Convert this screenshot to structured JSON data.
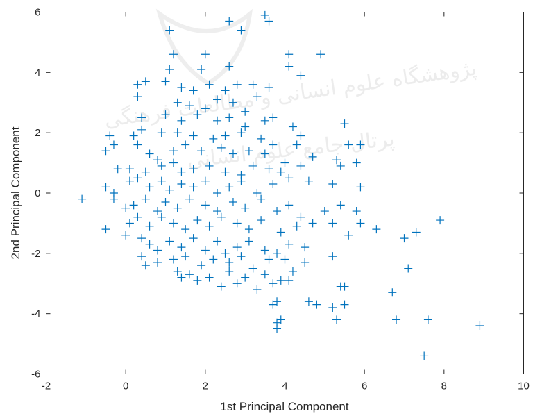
{
  "chart_data": {
    "type": "scatter",
    "marker": "+",
    "xlabel": "1st Principal Component",
    "ylabel": "2nd Principal Component",
    "xlim": [
      -2,
      10
    ],
    "ylim": [
      -6,
      6
    ],
    "xticks": [
      -2,
      0,
      2,
      4,
      6,
      8,
      10
    ],
    "yticks": [
      -6,
      -4,
      -2,
      0,
      2,
      4,
      6
    ],
    "grid": false,
    "color": "#0072BD",
    "series": [
      {
        "points": [
          [
            1.1,
            5.4
          ],
          [
            2.6,
            5.7
          ],
          [
            2.9,
            5.4
          ],
          [
            3.5,
            5.9
          ],
          [
            3.6,
            5.7
          ],
          [
            1.2,
            4.6
          ],
          [
            2.0,
            4.6
          ],
          [
            4.1,
            4.6
          ],
          [
            4.9,
            4.6
          ],
          [
            1.1,
            4.1
          ],
          [
            1.9,
            4.1
          ],
          [
            2.6,
            4.2
          ],
          [
            4.1,
            4.2
          ],
          [
            4.4,
            3.9
          ],
          [
            0.3,
            3.6
          ],
          [
            0.5,
            3.7
          ],
          [
            1.0,
            3.7
          ],
          [
            1.4,
            3.5
          ],
          [
            1.7,
            3.4
          ],
          [
            2.1,
            3.6
          ],
          [
            2.5,
            3.4
          ],
          [
            2.8,
            3.6
          ],
          [
            3.2,
            3.6
          ],
          [
            3.6,
            3.5
          ],
          [
            0.3,
            3.2
          ],
          [
            1.3,
            3.0
          ],
          [
            1.6,
            2.9
          ],
          [
            2.0,
            2.8
          ],
          [
            2.3,
            3.1
          ],
          [
            2.7,
            3.0
          ],
          [
            3.0,
            2.7
          ],
          [
            3.3,
            3.2
          ],
          [
            0.4,
            2.5
          ],
          [
            1.0,
            2.6
          ],
          [
            1.4,
            2.4
          ],
          [
            1.8,
            2.6
          ],
          [
            2.3,
            2.4
          ],
          [
            2.6,
            2.5
          ],
          [
            3.0,
            2.2
          ],
          [
            3.5,
            2.4
          ],
          [
            3.7,
            2.5
          ],
          [
            -0.4,
            1.9
          ],
          [
            0.2,
            1.9
          ],
          [
            0.4,
            2.1
          ],
          [
            0.9,
            2.0
          ],
          [
            1.3,
            2.0
          ],
          [
            1.7,
            1.9
          ],
          [
            2.2,
            1.8
          ],
          [
            2.5,
            1.9
          ],
          [
            2.9,
            2.0
          ],
          [
            3.4,
            1.8
          ],
          [
            4.2,
            2.2
          ],
          [
            4.4,
            1.9
          ],
          [
            5.5,
            2.3
          ],
          [
            -0.5,
            1.4
          ],
          [
            -0.3,
            1.6
          ],
          [
            0.3,
            1.6
          ],
          [
            0.6,
            1.3
          ],
          [
            0.8,
            1.1
          ],
          [
            1.2,
            1.4
          ],
          [
            1.5,
            1.6
          ],
          [
            1.9,
            1.4
          ],
          [
            2.4,
            1.5
          ],
          [
            2.7,
            1.3
          ],
          [
            3.1,
            1.4
          ],
          [
            3.5,
            1.3
          ],
          [
            3.7,
            1.6
          ],
          [
            4.0,
            1.0
          ],
          [
            4.3,
            1.6
          ],
          [
            4.7,
            1.2
          ],
          [
            5.3,
            1.1
          ],
          [
            5.6,
            1.6
          ],
          [
            5.9,
            1.6
          ],
          [
            -0.2,
            0.8
          ],
          [
            0.1,
            0.8
          ],
          [
            0.5,
            0.7
          ],
          [
            0.9,
            0.9
          ],
          [
            1.2,
            1.0
          ],
          [
            1.4,
            0.7
          ],
          [
            1.7,
            0.8
          ],
          [
            2.1,
            0.9
          ],
          [
            2.5,
            0.7
          ],
          [
            2.9,
            0.6
          ],
          [
            3.2,
            0.9
          ],
          [
            3.6,
            0.8
          ],
          [
            3.9,
            0.7
          ],
          [
            4.4,
            0.9
          ],
          [
            5.4,
            0.9
          ],
          [
            5.8,
            1.0
          ],
          [
            -1.1,
            -0.2
          ],
          [
            -0.5,
            0.2
          ],
          [
            -0.3,
            0.0
          ],
          [
            0.1,
            0.4
          ],
          [
            0.3,
            0.5
          ],
          [
            0.6,
            0.2
          ],
          [
            0.9,
            0.4
          ],
          [
            1.1,
            0.1
          ],
          [
            1.4,
            0.3
          ],
          [
            1.7,
            0.2
          ],
          [
            2.0,
            0.4
          ],
          [
            2.3,
            0.0
          ],
          [
            2.6,
            0.2
          ],
          [
            2.9,
            0.4
          ],
          [
            3.3,
            0.0
          ],
          [
            3.7,
            0.3
          ],
          [
            4.1,
            0.5
          ],
          [
            4.6,
            0.4
          ],
          [
            5.2,
            0.3
          ],
          [
            5.9,
            0.2
          ],
          [
            -0.3,
            -0.2
          ],
          [
            0.0,
            -0.5
          ],
          [
            0.2,
            -0.4
          ],
          [
            0.5,
            -0.2
          ],
          [
            0.8,
            -0.6
          ],
          [
            1.0,
            -0.3
          ],
          [
            1.3,
            -0.5
          ],
          [
            1.6,
            -0.2
          ],
          [
            2.0,
            -0.4
          ],
          [
            2.3,
            -0.6
          ],
          [
            2.7,
            -0.3
          ],
          [
            3.0,
            -0.5
          ],
          [
            3.4,
            -0.2
          ],
          [
            3.8,
            -0.6
          ],
          [
            4.1,
            -0.4
          ],
          [
            4.4,
            -0.8
          ],
          [
            5.0,
            -0.6
          ],
          [
            5.4,
            -0.4
          ],
          [
            5.8,
            -0.6
          ],
          [
            -0.5,
            -1.2
          ],
          [
            0.1,
            -1.0
          ],
          [
            0.3,
            -0.8
          ],
          [
            0.6,
            -1.1
          ],
          [
            0.9,
            -0.8
          ],
          [
            1.2,
            -1.0
          ],
          [
            1.5,
            -1.2
          ],
          [
            1.8,
            -0.9
          ],
          [
            2.1,
            -1.1
          ],
          [
            2.4,
            -0.8
          ],
          [
            2.8,
            -1.0
          ],
          [
            3.1,
            -1.2
          ],
          [
            3.4,
            -0.9
          ],
          [
            3.9,
            -1.3
          ],
          [
            4.3,
            -1.1
          ],
          [
            4.7,
            -1.0
          ],
          [
            5.2,
            -1.0
          ],
          [
            5.6,
            -1.4
          ],
          [
            5.9,
            -1.0
          ],
          [
            6.3,
            -1.2
          ],
          [
            7.0,
            -1.5
          ],
          [
            7.3,
            -1.3
          ],
          [
            7.9,
            -0.9
          ],
          [
            0.0,
            -1.4
          ],
          [
            0.4,
            -1.5
          ],
          [
            0.6,
            -1.7
          ],
          [
            0.8,
            -1.9
          ],
          [
            1.1,
            -1.6
          ],
          [
            1.4,
            -1.8
          ],
          [
            1.7,
            -1.5
          ],
          [
            2.0,
            -1.9
          ],
          [
            2.3,
            -1.6
          ],
          [
            2.5,
            -2.0
          ],
          [
            2.8,
            -1.8
          ],
          [
            3.1,
            -1.6
          ],
          [
            3.5,
            -1.9
          ],
          [
            3.8,
            -2.0
          ],
          [
            4.1,
            -1.7
          ],
          [
            4.5,
            -1.8
          ],
          [
            0.4,
            -2.1
          ],
          [
            0.8,
            -2.3
          ],
          [
            1.2,
            -2.2
          ],
          [
            1.5,
            -2.1
          ],
          [
            1.9,
            -2.4
          ],
          [
            2.2,
            -2.2
          ],
          [
            2.6,
            -2.3
          ],
          [
            2.9,
            -2.1
          ],
          [
            3.2,
            -2.5
          ],
          [
            3.6,
            -2.2
          ],
          [
            4.0,
            -2.2
          ],
          [
            4.5,
            -2.3
          ],
          [
            5.2,
            -2.1
          ],
          [
            7.1,
            -2.5
          ],
          [
            0.5,
            -2.4
          ],
          [
            1.3,
            -2.6
          ],
          [
            1.6,
            -2.7
          ],
          [
            2.1,
            -2.8
          ],
          [
            2.6,
            -2.6
          ],
          [
            3.0,
            -2.8
          ],
          [
            3.5,
            -2.7
          ],
          [
            3.9,
            -2.9
          ],
          [
            4.2,
            -2.6
          ],
          [
            1.4,
            -2.8
          ],
          [
            1.8,
            -2.9
          ],
          [
            2.4,
            -3.1
          ],
          [
            2.8,
            -3.0
          ],
          [
            3.3,
            -3.2
          ],
          [
            3.7,
            -3.0
          ],
          [
            4.1,
            -2.9
          ],
          [
            5.4,
            -3.1
          ],
          [
            5.5,
            -3.1
          ],
          [
            4.6,
            -3.6
          ],
          [
            4.8,
            -3.7
          ],
          [
            5.2,
            -3.8
          ],
          [
            5.5,
            -3.7
          ],
          [
            3.7,
            -3.7
          ],
          [
            3.8,
            -3.6
          ],
          [
            6.7,
            -3.3
          ],
          [
            3.8,
            -4.3
          ],
          [
            3.9,
            -4.2
          ],
          [
            3.8,
            -4.5
          ],
          [
            5.3,
            -4.2
          ],
          [
            6.8,
            -4.2
          ],
          [
            7.6,
            -4.2
          ],
          [
            8.9,
            -4.4
          ],
          [
            7.5,
            -5.4
          ]
        ]
      }
    ]
  },
  "watermark": {
    "logo_name": "institute-emblem-icon",
    "lines": [
      "پژوهشگاه علوم انسانی و مطالعات فرهنگی",
      "پرتال جامع علوم انسانی"
    ]
  }
}
